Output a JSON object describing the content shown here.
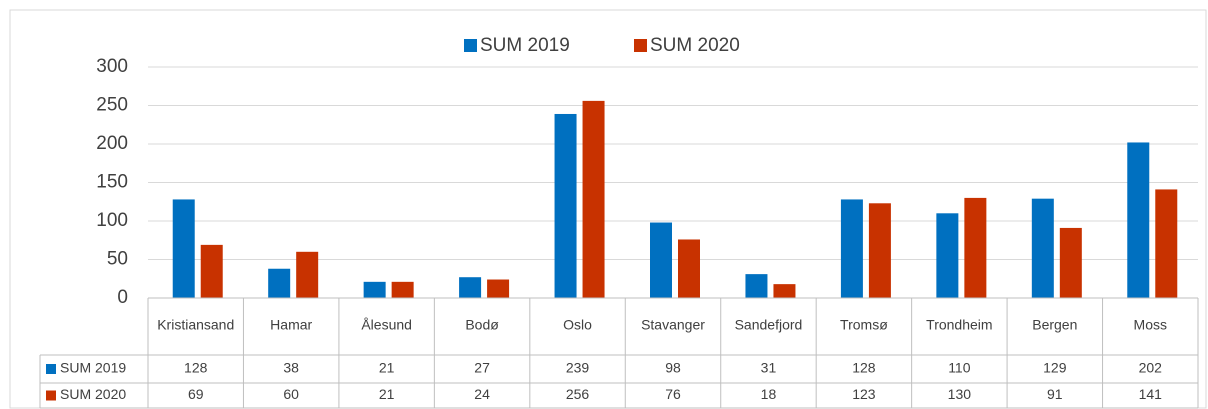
{
  "chart_data": {
    "type": "bar",
    "categories": [
      "Kristiansand",
      "Hamar",
      "Ålesund",
      "Bodø",
      "Oslo",
      "Stavanger",
      "Sandefjord",
      "Tromsø",
      "Trondheim",
      "Bergen",
      "Moss"
    ],
    "series": [
      {
        "name": "SUM 2019",
        "color": "#0070c0",
        "values": [
          128,
          38,
          21,
          27,
          239,
          98,
          31,
          128,
          110,
          129,
          202
        ]
      },
      {
        "name": "SUM 2020",
        "color": "#c83200",
        "values": [
          69,
          60,
          21,
          24,
          256,
          76,
          18,
          123,
          130,
          91,
          141
        ]
      }
    ],
    "ylim": [
      0,
      300
    ],
    "yticks": [
      0,
      50,
      100,
      150,
      200,
      250,
      300
    ],
    "grid": true,
    "legend": "top",
    "data_table": true
  }
}
